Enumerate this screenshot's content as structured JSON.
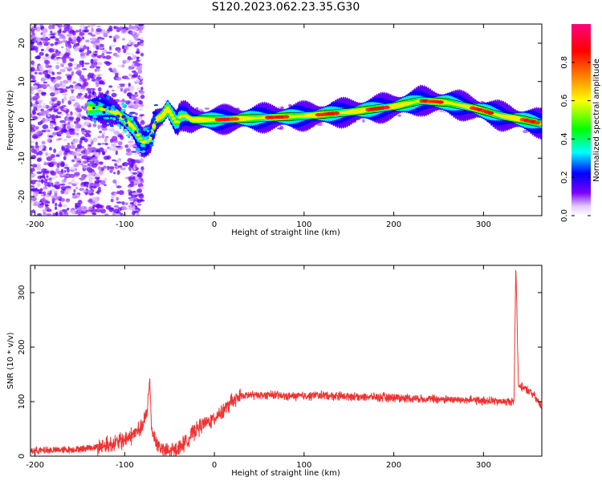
{
  "title": "S120.2023.062.23.35.G30",
  "colorbar": {
    "label": "Normalized spectral amplitude",
    "ticks": [
      "0.0",
      "0.2",
      "0.4",
      "0.6",
      "0.8"
    ],
    "tick_values": [
      0.0,
      0.2,
      0.4,
      0.6,
      0.8
    ],
    "range": [
      0,
      1
    ],
    "colormap": "rainbow (white-purple-blue-cyan-green-yellow-orange-red-magenta)"
  },
  "chart_data": [
    {
      "type": "heatmap",
      "title": "",
      "xlabel": "Height of straight line (km)",
      "ylabel": "Frequency (Hz)",
      "xlim": [
        -205,
        365
      ],
      "ylim": [
        -25,
        25
      ],
      "xticks": [
        -200,
        -100,
        0,
        100,
        200,
        300
      ],
      "yticks": [
        -20,
        -10,
        0,
        10,
        20
      ],
      "grid": false,
      "ridge": {
        "name": "",
        "x": [
          -130,
          -110,
          -90,
          -80,
          -72,
          -65,
          -58,
          -52,
          -47,
          -42,
          -38,
          -32,
          -25,
          0,
          50,
          100,
          150,
          200,
          230,
          260,
          290,
          320,
          345,
          365
        ],
        "y": [
          3,
          2,
          -2,
          -6,
          -5,
          0,
          1,
          3,
          1,
          -1,
          1,
          1,
          0,
          0,
          0.5,
          1,
          2,
          3.5,
          5,
          4.5,
          3,
          1,
          0,
          -1
        ]
      }
    },
    {
      "type": "line",
      "title": "",
      "xlabel": "Height of straight line (km)",
      "ylabel": "SNR (10 * v/v)",
      "xlim": [
        -205,
        365
      ],
      "ylim": [
        0,
        350
      ],
      "xticks": [
        -200,
        -100,
        0,
        100,
        200,
        300
      ],
      "yticks": [
        0,
        100,
        200,
        300
      ],
      "grid": false,
      "series": [
        {
          "name": "",
          "color": "#ee3333",
          "x": [
            -205,
            -180,
            -160,
            -140,
            -120,
            -100,
            -90,
            -80,
            -75,
            -72,
            -70,
            -68,
            -65,
            -60,
            -55,
            -50,
            -45,
            -40,
            -30,
            -20,
            -10,
            0,
            10,
            20,
            30,
            40,
            60,
            80,
            100,
            120,
            140,
            160,
            180,
            200,
            220,
            240,
            260,
            280,
            300,
            320,
            334,
            336,
            337,
            338,
            339,
            340,
            345,
            355,
            365
          ],
          "y": [
            10,
            11,
            12,
            15,
            20,
            30,
            40,
            55,
            80,
            140,
            50,
            40,
            25,
            15,
            10,
            8,
            10,
            15,
            30,
            50,
            60,
            70,
            85,
            100,
            110,
            112,
            112,
            110,
            110,
            112,
            110,
            110,
            108,
            108,
            106,
            105,
            104,
            103,
            102,
            100,
            100,
            345,
            290,
            200,
            130,
            128,
            125,
            115,
            90
          ]
        }
      ]
    }
  ]
}
